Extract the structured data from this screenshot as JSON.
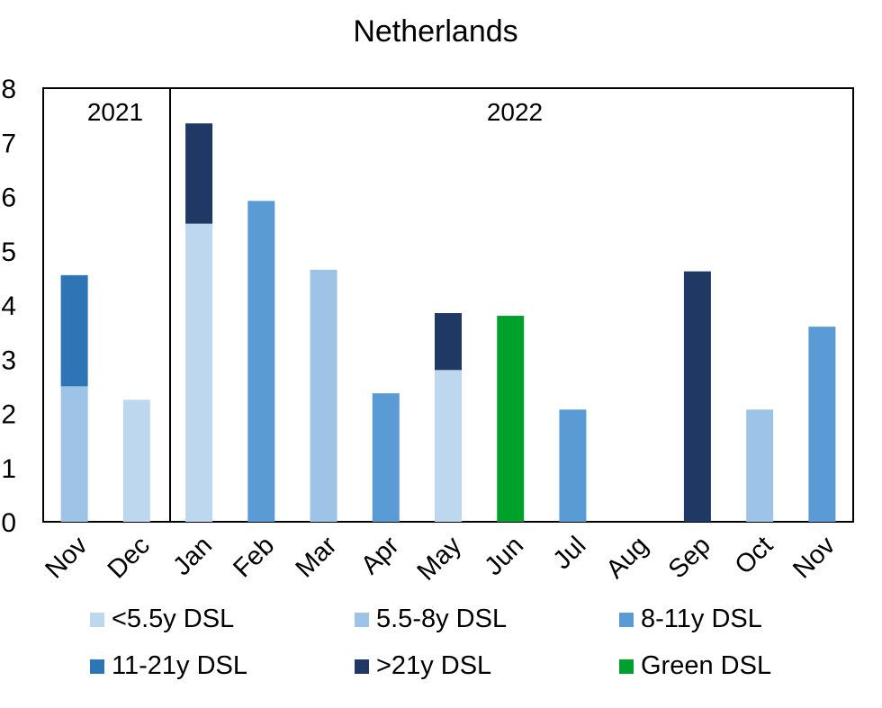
{
  "chart_data": {
    "type": "bar",
    "stacked": true,
    "title": "Netherlands",
    "xlabel": "",
    "ylabel": "",
    "ylim": [
      0,
      8
    ],
    "yticks": [
      "0",
      "1",
      "2",
      "3",
      "4",
      "5",
      "6",
      "7",
      "8"
    ],
    "year_labels": [
      "2021",
      "2022"
    ],
    "categories": [
      "Nov",
      "Dec",
      "Jan",
      "Feb",
      "Mar",
      "Apr",
      "May",
      "Jun",
      "Jul",
      "Aug",
      "Sep",
      "Oct",
      "Nov"
    ],
    "legend_position": "bottom",
    "series": [
      {
        "name": "<5.5y DSL",
        "color": "#BDD7EE",
        "values": [
          0,
          2.25,
          5.5,
          0,
          0,
          0,
          2.8,
          0,
          0,
          0,
          0,
          0,
          0
        ]
      },
      {
        "name": "5.5-8y DSL",
        "color": "#9DC3E6",
        "values": [
          2.5,
          0,
          0,
          0,
          4.65,
          0,
          0,
          0,
          0,
          0,
          0,
          2.07,
          0
        ]
      },
      {
        "name": "8-11y DSL",
        "color": "#5B9BD5",
        "values": [
          0,
          0,
          0,
          5.92,
          0,
          2.37,
          0,
          0,
          2.07,
          0,
          0,
          0,
          3.6
        ]
      },
      {
        "name": "11-21y DSL",
        "color": "#2E75B6",
        "values": [
          2.05,
          0,
          0,
          0,
          0,
          0,
          0,
          0,
          0,
          0,
          0,
          0,
          0
        ]
      },
      {
        "name": ">21y DSL",
        "color": "#1F3864",
        "values": [
          0,
          0,
          1.85,
          0,
          0,
          0,
          1.05,
          0,
          0,
          0,
          4.62,
          0,
          0
        ]
      },
      {
        "name": "Green DSL",
        "color": "#00A02C",
        "values": [
          0,
          0,
          0,
          0,
          0,
          0,
          0,
          3.8,
          0,
          0,
          0,
          0,
          0
        ]
      }
    ]
  }
}
